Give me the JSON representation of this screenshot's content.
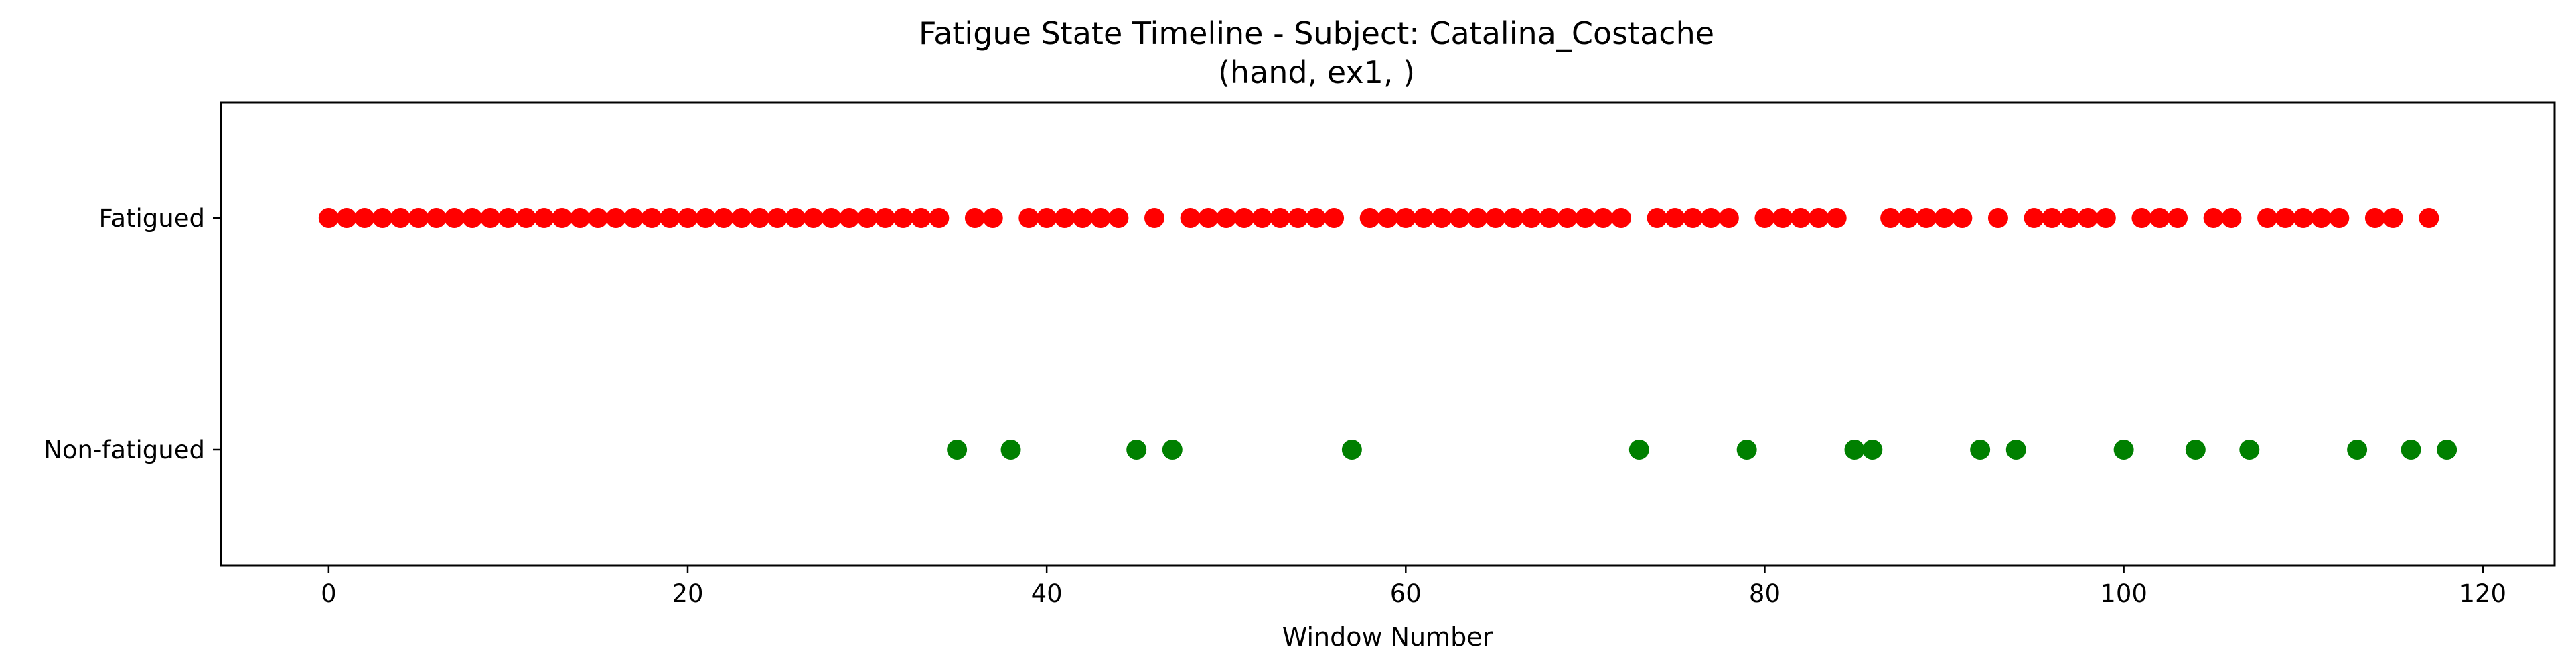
{
  "chart_data": {
    "type": "scatter",
    "title": "Fatigue State Timeline - Subject: Catalina_Costache",
    "subtitle": "(hand, ex1, )",
    "xlabel": "Window Number",
    "ylabel": "",
    "xlim": [
      -6,
      124
    ],
    "ylim": [
      -0.5,
      1.5
    ],
    "xticks": [
      0,
      20,
      40,
      60,
      80,
      100,
      120
    ],
    "yticks": [
      {
        "value": 1,
        "label": "Fatigued"
      },
      {
        "value": 0,
        "label": "Non-fatigued"
      }
    ],
    "grid": false,
    "legend": "none",
    "series": [
      {
        "color": "#ff0000",
        "y": 1,
        "x": [
          0,
          1,
          2,
          3,
          4,
          5,
          6,
          7,
          8,
          9,
          10,
          11,
          12,
          13,
          14,
          15,
          16,
          17,
          18,
          19,
          20,
          21,
          22,
          23,
          24,
          25,
          26,
          27,
          28,
          29,
          30,
          31,
          32,
          33,
          34,
          36,
          37,
          39,
          40,
          41,
          42,
          43,
          44,
          46,
          48,
          49,
          50,
          51,
          52,
          53,
          54,
          55,
          56,
          58,
          59,
          60,
          61,
          62,
          63,
          64,
          65,
          66,
          67,
          68,
          69,
          70,
          71,
          72,
          74,
          75,
          76,
          77,
          78,
          80,
          81,
          82,
          83,
          84,
          87,
          88,
          89,
          90,
          91,
          93,
          95,
          96,
          97,
          98,
          99,
          101,
          102,
          103,
          105,
          106,
          108,
          109,
          110,
          111,
          112,
          114,
          115,
          117
        ]
      },
      {
        "color": "#008000",
        "y": 0,
        "x": [
          35,
          38,
          45,
          47,
          57,
          73,
          79,
          85,
          86,
          92,
          94,
          100,
          104,
          107,
          113,
          116,
          118
        ]
      }
    ]
  }
}
